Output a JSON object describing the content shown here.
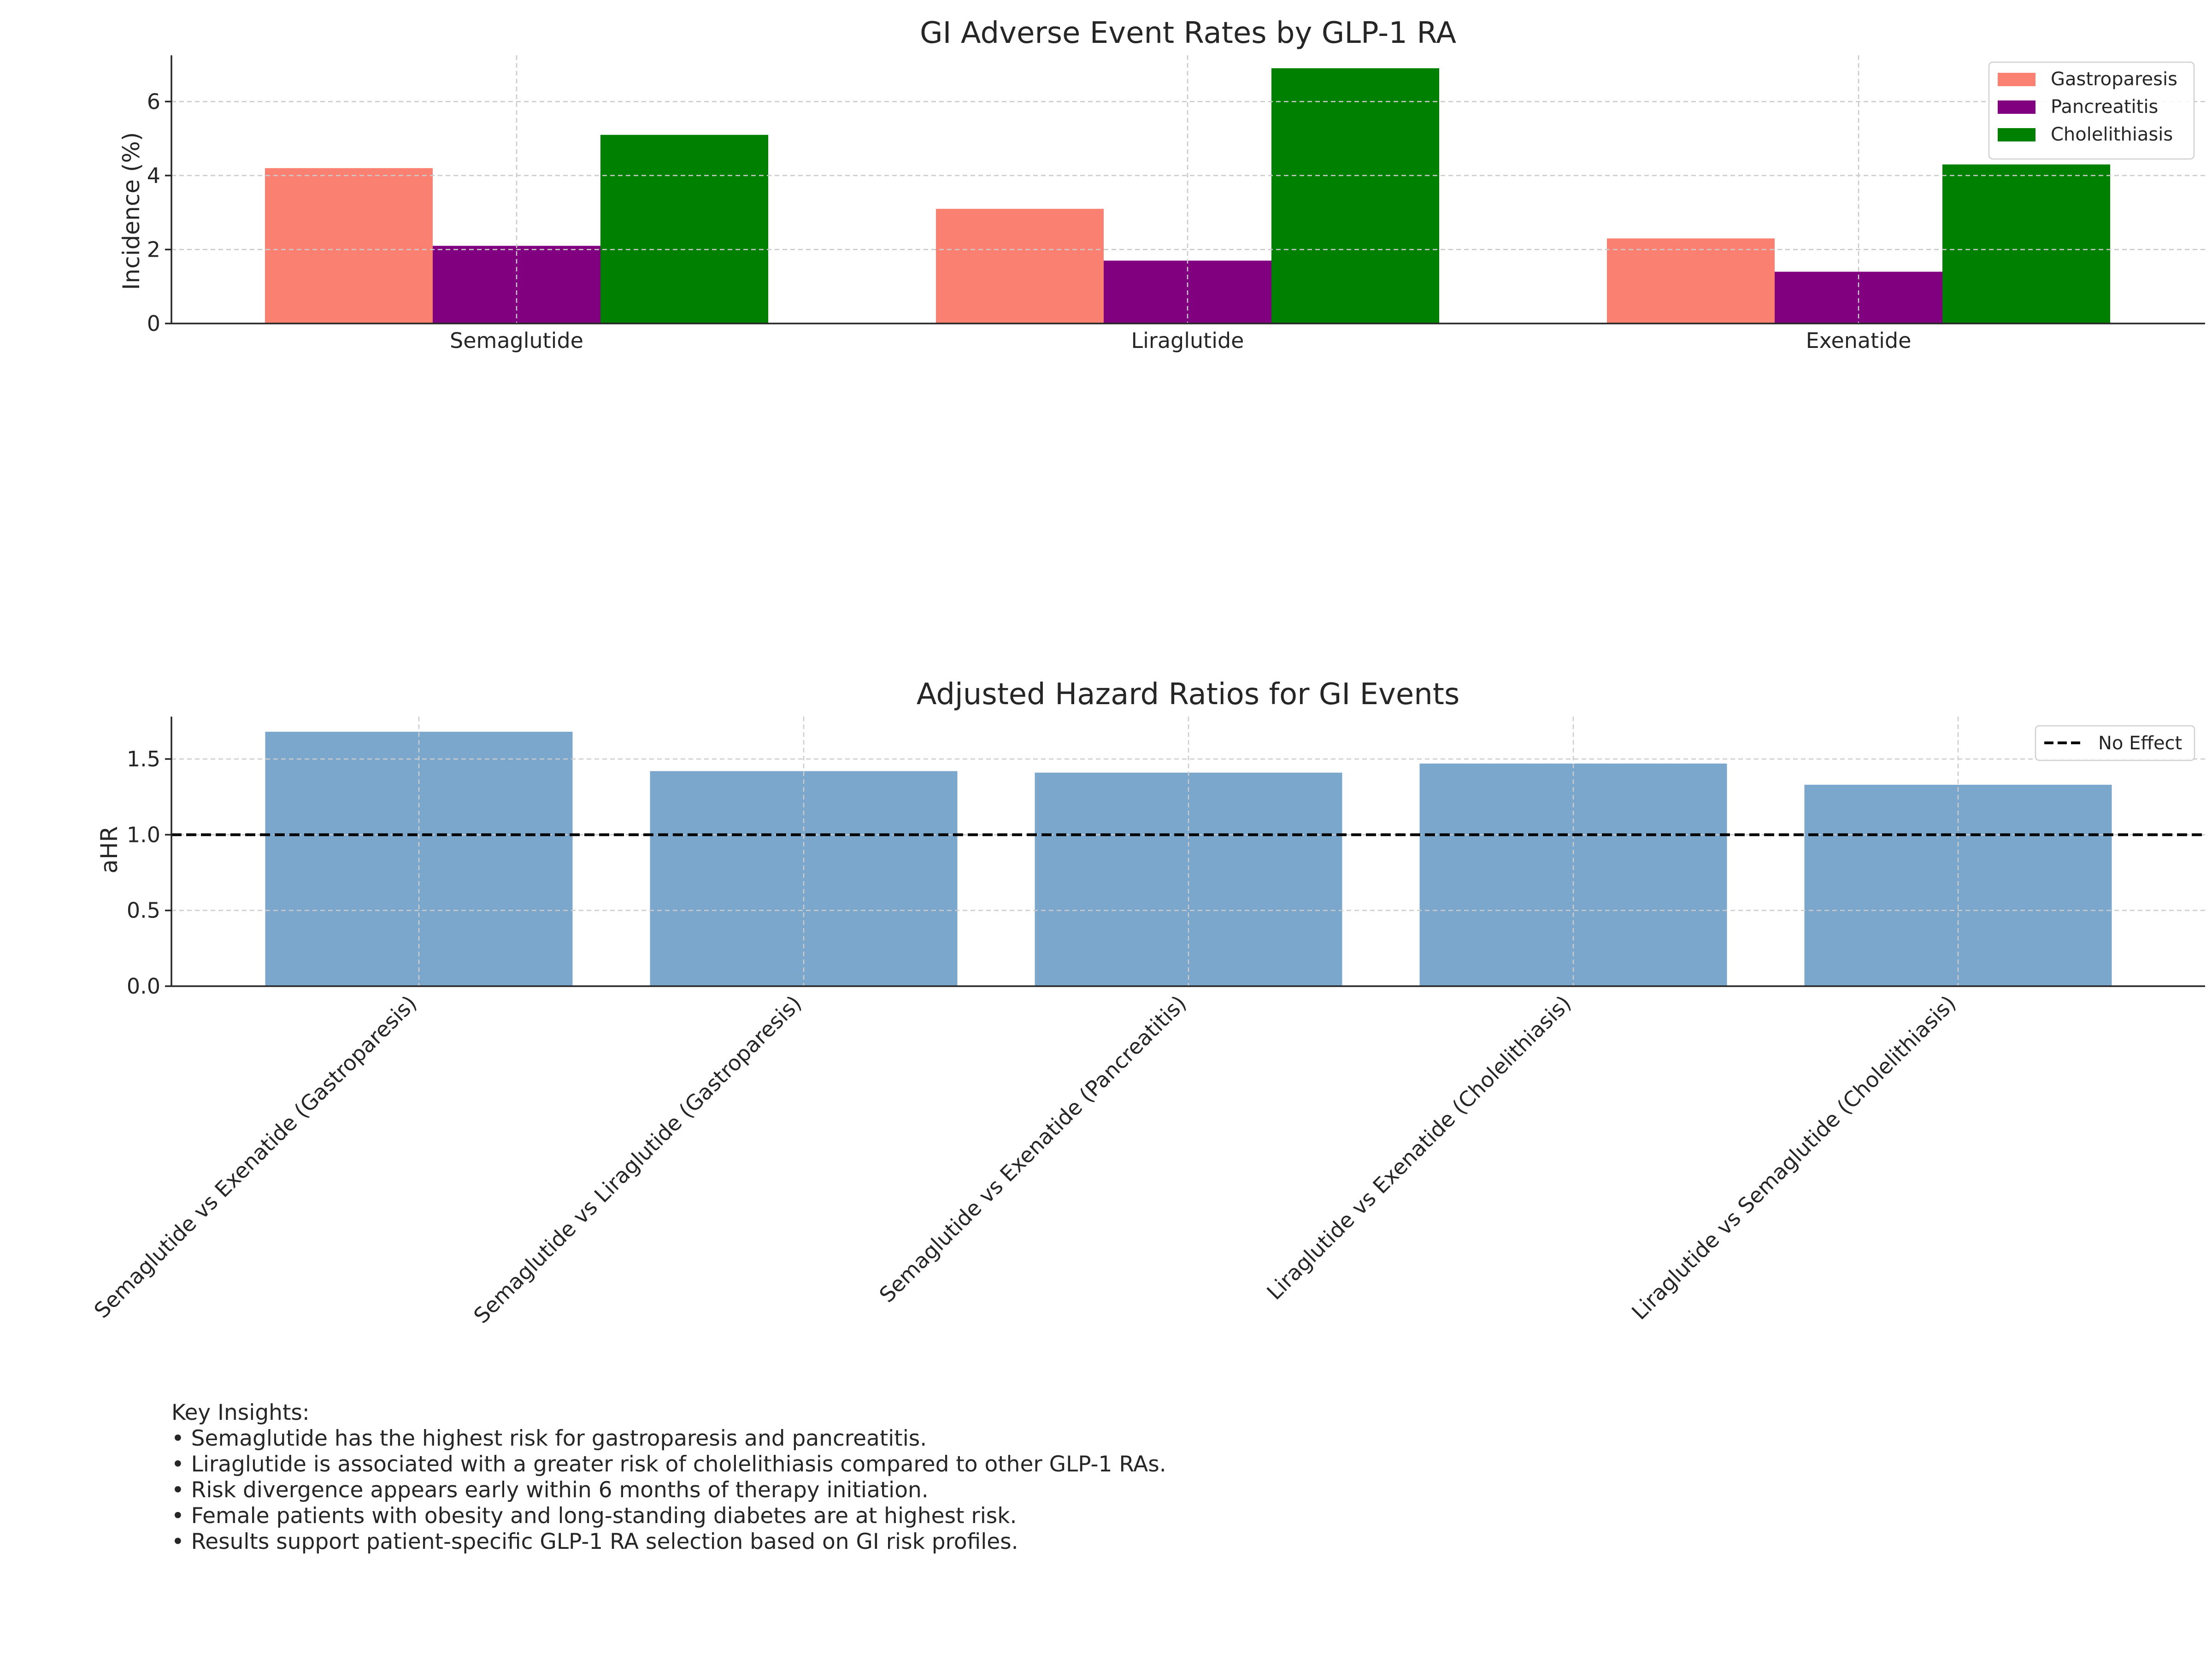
{
  "chart_data": [
    {
      "type": "bar",
      "title": "GI Adverse Event Rates by GLP-1 RA",
      "xlabel": "",
      "ylabel": "Incidence (%)",
      "categories": [
        "Semaglutide",
        "Liraglutide",
        "Exenatide"
      ],
      "series": [
        {
          "name": "Gastroparesis",
          "color": "#fa8072",
          "values": [
            4.2,
            3.1,
            2.3
          ]
        },
        {
          "name": "Pancreatitis",
          "color": "#800080",
          "values": [
            2.1,
            1.7,
            1.4
          ]
        },
        {
          "name": "Cholelithiasis",
          "color": "#008000",
          "values": [
            5.1,
            6.9,
            4.3
          ]
        }
      ],
      "ylim": [
        0,
        7.25
      ],
      "yticks": [
        0,
        2,
        4,
        6
      ],
      "ytick_labels": [
        "0",
        "2",
        "4",
        "6"
      ],
      "grid": true,
      "legend": "top-right"
    },
    {
      "type": "bar",
      "title": "Adjusted Hazard Ratios for GI Events",
      "xlabel": "",
      "ylabel": "aHR",
      "categories": [
        "Semaglutide vs Exenatide (Gastroparesis)",
        "Semaglutide vs Liraglutide (Gastroparesis)",
        "Semaglutide vs Exenatide (Pancreatitis)",
        "Liraglutide vs Exenatide (Cholelithiasis)",
        "Liraglutide vs Semaglutide (Cholelithiasis)"
      ],
      "values": [
        1.68,
        1.42,
        1.41,
        1.47,
        1.33
      ],
      "bar_color": "#7ba7cc",
      "reference_line": {
        "y": 1.0,
        "label": "No Effect",
        "style": "dashed",
        "color": "#000000"
      },
      "ylim": [
        0,
        1.78
      ],
      "yticks": [
        0,
        0.5,
        1.0,
        1.5
      ],
      "ytick_labels": [
        "0.0",
        "0.5",
        "1.0",
        "1.5"
      ],
      "grid": true,
      "legend": "top-right"
    }
  ],
  "insights": {
    "heading": "Key Insights:",
    "items": [
      "• Semaglutide has the highest risk for gastroparesis and pancreatitis.",
      "• Liraglutide is associated with a greater risk of cholelithiasis compared to other GLP-1 RAs.",
      "• Risk divergence appears early within 6 months of therapy initiation.",
      "• Female patients with obesity and long-standing diabetes are at highest risk.",
      "• Results support patient-specific GLP-1 RA selection based on GI risk profiles."
    ]
  }
}
